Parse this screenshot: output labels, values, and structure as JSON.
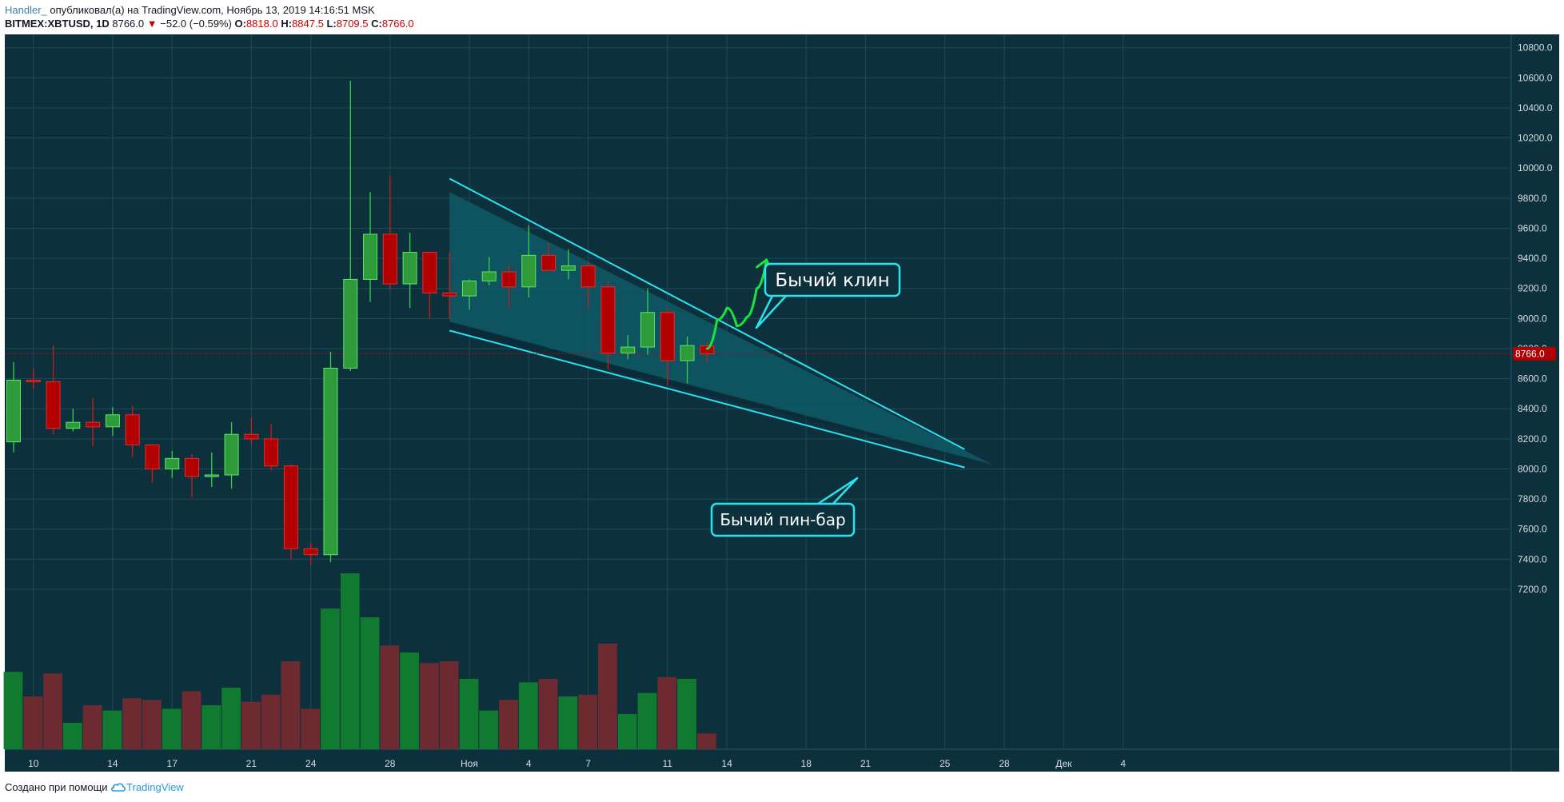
{
  "header": {
    "author": "Handler_",
    "published": " опубликовал(а) на TradingView.com, Ноябрь 13, 2019 14:16:51 MSK",
    "symbol": "BITMEX:XBTUSD, 1D",
    "last": "8766.0",
    "change_arrow": "▼",
    "change": "−52.0 (−0.59%)",
    "o_label": "O:",
    "o": "8818.0",
    "h_label": "H:",
    "h": "8847.5",
    "l_label": "L:",
    "l": "8709.5",
    "c_label": "C:",
    "c": "8766.0"
  },
  "footer": {
    "created_with": "Создано при помощи",
    "brand": "TradingView",
    "logo_icon": "tradingview-cloud-icon"
  },
  "colors": {
    "background": "#0c313d",
    "grid": "#1e4a57",
    "up": "#2f9a3a",
    "down": "#b30000",
    "vol_up": "#107a30",
    "vol_down": "#6d2a31",
    "wedge_line": "#29e3ef",
    "wedge_fill": "#0e5a66",
    "arrow": "#19e63c",
    "price_tag": "#b00000"
  },
  "chart_data": {
    "type": "candlestick",
    "title": "",
    "y_range": [
      7100,
      10900
    ],
    "y_ticks": [
      7200,
      7400,
      7600,
      7800,
      8000,
      8200,
      8400,
      8600,
      8800,
      9000,
      9200,
      9400,
      9600,
      9800,
      10000,
      10200,
      10400,
      10600,
      10800
    ],
    "y_tick_labels": [
      "7200.0",
      "7400.0",
      "7600.0",
      "7800.0",
      "8000.0",
      "8200.0",
      "8400.0",
      "8600.0",
      "8800.0",
      "9000.0",
      "9200.0",
      "9400.0",
      "9600.0",
      "9800.0",
      "10000.0",
      "10200.0",
      "10400.0",
      "10600.0",
      "10800.0"
    ],
    "x_ticks": [
      {
        "d": "2019-10-10",
        "label": "10"
      },
      {
        "d": "2019-10-14",
        "label": "14"
      },
      {
        "d": "2019-10-17",
        "label": "17"
      },
      {
        "d": "2019-10-21",
        "label": "21"
      },
      {
        "d": "2019-10-24",
        "label": "24"
      },
      {
        "d": "2019-10-28",
        "label": "28"
      },
      {
        "d": "2019-11-01",
        "label": "Ноя"
      },
      {
        "d": "2019-11-04",
        "label": "4"
      },
      {
        "d": "2019-11-07",
        "label": "7"
      },
      {
        "d": "2019-11-11",
        "label": "11"
      },
      {
        "d": "2019-11-14",
        "label": "14"
      },
      {
        "d": "2019-11-18",
        "label": "18"
      },
      {
        "d": "2019-11-21",
        "label": "21"
      },
      {
        "d": "2019-11-25",
        "label": "25"
      },
      {
        "d": "2019-11-28",
        "label": "28"
      },
      {
        "d": "2019-12-01",
        "label": "Дек"
      },
      {
        "d": "2019-12-04",
        "label": "4"
      }
    ],
    "last_price": 8766.0,
    "last_price_label": "8766.0",
    "candles": [
      {
        "d": "2019-10-09",
        "o": 8180,
        "h": 8710,
        "l": 8110,
        "c": 8590,
        "v": 0.44
      },
      {
        "d": "2019-10-10",
        "o": 8590,
        "h": 8670,
        "l": 8530,
        "c": 8580,
        "v": 0.3
      },
      {
        "d": "2019-10-11",
        "o": 8580,
        "h": 8820,
        "l": 8230,
        "c": 8270,
        "v": 0.43
      },
      {
        "d": "2019-10-12",
        "o": 8270,
        "h": 8400,
        "l": 8250,
        "c": 8310,
        "v": 0.15
      },
      {
        "d": "2019-10-13",
        "o": 8310,
        "h": 8470,
        "l": 8150,
        "c": 8280,
        "v": 0.25
      },
      {
        "d": "2019-10-14",
        "o": 8280,
        "h": 8410,
        "l": 8220,
        "c": 8360,
        "v": 0.22
      },
      {
        "d": "2019-10-15",
        "o": 8360,
        "h": 8420,
        "l": 8080,
        "c": 8160,
        "v": 0.29
      },
      {
        "d": "2019-10-16",
        "o": 8160,
        "h": 8160,
        "l": 7910,
        "c": 8000,
        "v": 0.28
      },
      {
        "d": "2019-10-17",
        "o": 8000,
        "h": 8120,
        "l": 7940,
        "c": 8070,
        "v": 0.23
      },
      {
        "d": "2019-10-18",
        "o": 8070,
        "h": 8100,
        "l": 7810,
        "c": 7950,
        "v": 0.33
      },
      {
        "d": "2019-10-19",
        "o": 7950,
        "h": 8110,
        "l": 7880,
        "c": 7960,
        "v": 0.25
      },
      {
        "d": "2019-10-20",
        "o": 7960,
        "h": 8310,
        "l": 7870,
        "c": 8230,
        "v": 0.35
      },
      {
        "d": "2019-10-21",
        "o": 8230,
        "h": 8340,
        "l": 8160,
        "c": 8200,
        "v": 0.27
      },
      {
        "d": "2019-10-22",
        "o": 8200,
        "h": 8300,
        "l": 7990,
        "c": 8020,
        "v": 0.31
      },
      {
        "d": "2019-10-23",
        "o": 8020,
        "h": 8030,
        "l": 7400,
        "c": 7470,
        "v": 0.5
      },
      {
        "d": "2019-10-24",
        "o": 7470,
        "h": 7510,
        "l": 7360,
        "c": 7430,
        "v": 0.23
      },
      {
        "d": "2019-10-25",
        "o": 7430,
        "h": 8780,
        "l": 7380,
        "c": 8670,
        "v": 0.8
      },
      {
        "d": "2019-10-26",
        "o": 8670,
        "h": 10580,
        "l": 8650,
        "c": 9260,
        "v": 1.0
      },
      {
        "d": "2019-10-27",
        "o": 9260,
        "h": 9840,
        "l": 9110,
        "c": 9560,
        "v": 0.75
      },
      {
        "d": "2019-10-28",
        "o": 9560,
        "h": 9950,
        "l": 9190,
        "c": 9230,
        "v": 0.59
      },
      {
        "d": "2019-10-29",
        "o": 9230,
        "h": 9570,
        "l": 9070,
        "c": 9440,
        "v": 0.55
      },
      {
        "d": "2019-10-30",
        "o": 9440,
        "h": 9440,
        "l": 9000,
        "c": 9170,
        "v": 0.49
      },
      {
        "d": "2019-10-31",
        "o": 9170,
        "h": 9440,
        "l": 9000,
        "c": 9150,
        "v": 0.5
      },
      {
        "d": "2019-11-01",
        "o": 9150,
        "h": 9260,
        "l": 9060,
        "c": 9250,
        "v": 0.4
      },
      {
        "d": "2019-11-02",
        "o": 9250,
        "h": 9410,
        "l": 9220,
        "c": 9310,
        "v": 0.22
      },
      {
        "d": "2019-11-03",
        "o": 9310,
        "h": 9360,
        "l": 9070,
        "c": 9210,
        "v": 0.28
      },
      {
        "d": "2019-11-04",
        "o": 9210,
        "h": 9620,
        "l": 9140,
        "c": 9420,
        "v": 0.38
      },
      {
        "d": "2019-11-05",
        "o": 9420,
        "h": 9500,
        "l": 9330,
        "c": 9320,
        "v": 0.4
      },
      {
        "d": "2019-11-06",
        "o": 9320,
        "h": 9460,
        "l": 9260,
        "c": 9350,
        "v": 0.3
      },
      {
        "d": "2019-11-07",
        "o": 9350,
        "h": 9380,
        "l": 9070,
        "c": 9210,
        "v": 0.31
      },
      {
        "d": "2019-11-08",
        "o": 9210,
        "h": 9250,
        "l": 8660,
        "c": 8770,
        "v": 0.6
      },
      {
        "d": "2019-11-09",
        "o": 8770,
        "h": 8890,
        "l": 8730,
        "c": 8810,
        "v": 0.2
      },
      {
        "d": "2019-11-10",
        "o": 8810,
        "h": 9200,
        "l": 8760,
        "c": 9040,
        "v": 0.32
      },
      {
        "d": "2019-11-11",
        "o": 9040,
        "h": 9070,
        "l": 8560,
        "c": 8720,
        "v": 0.41
      },
      {
        "d": "2019-11-12",
        "o": 8720,
        "h": 8880,
        "l": 8570,
        "c": 8820,
        "v": 0.4
      },
      {
        "d": "2019-11-13",
        "o": 8818,
        "h": 8847.5,
        "l": 8709.5,
        "c": 8766,
        "v": 0.09
      }
    ],
    "annotations": [
      {
        "id": "bullish-wedge",
        "text": "Бычий клин"
      },
      {
        "id": "bullish-pin-bar",
        "text": "Бычий пин-бар"
      }
    ],
    "wedge": {
      "upper": [
        {
          "d": "2019-10-31",
          "p": 9930
        },
        {
          "d": "2019-11-26",
          "p": 8130
        }
      ],
      "lower": [
        {
          "d": "2019-10-31",
          "p": 8920
        },
        {
          "d": "2019-11-26",
          "p": 8010
        }
      ],
      "apex": {
        "d": "2019-11-27",
        "p": 8030
      }
    },
    "projection": [
      {
        "d": "2019-11-13",
        "p": 8800
      },
      {
        "d": "2019-11-13.5",
        "p": 8990
      },
      {
        "d": "2019-11-14",
        "p": 9070
      },
      {
        "d": "2019-11-14.5",
        "p": 8950
      },
      {
        "d": "2019-11-15",
        "p": 9010
      },
      {
        "d": "2019-11-15.5",
        "p": 9200
      },
      {
        "d": "2019-11-16",
        "p": 9390
      }
    ]
  }
}
